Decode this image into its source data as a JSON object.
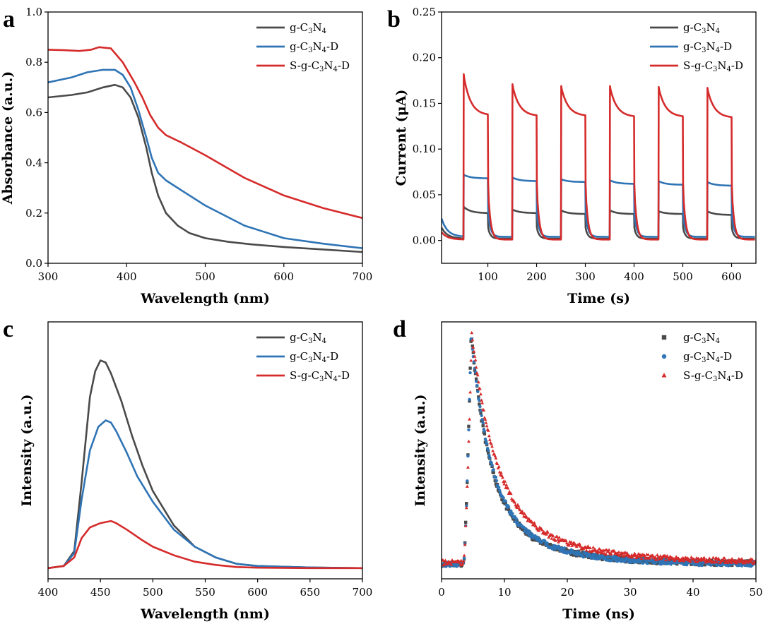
{
  "colors": {
    "g-C3N4": "#4a4a4a",
    "g-C3N4-D": "#2f74b5",
    "S-g-C3N4-D": "#d62b2b"
  },
  "chart_data": [
    {
      "id": "a",
      "panel_letter": "a",
      "type": "line",
      "xlabel": "Wavelength (nm)",
      "ylabel": "Absorbance (a.u.)",
      "xlim": [
        300,
        700
      ],
      "ylim": [
        0,
        1.0
      ],
      "xticks": [
        300,
        400,
        500,
        600,
        700
      ],
      "yticks": [
        0.0,
        0.2,
        0.4,
        0.6,
        0.8,
        1.0
      ],
      "xtick_labels": [
        "300",
        "400",
        "500",
        "600",
        "700"
      ],
      "ytick_labels": [
        "0.0",
        "0.2",
        "0.4",
        "0.6",
        "0.8",
        "1.0"
      ],
      "legend_position": "top-right",
      "series": [
        {
          "key": "g-C3N4",
          "legend": [
            "g-C",
            "3",
            "N",
            "4",
            ""
          ],
          "x": [
            300,
            330,
            350,
            370,
            385,
            395,
            405,
            415,
            425,
            432,
            440,
            450,
            465,
            480,
            500,
            530,
            560,
            600,
            650,
            700
          ],
          "y": [
            0.66,
            0.67,
            0.68,
            0.7,
            0.71,
            0.7,
            0.66,
            0.58,
            0.46,
            0.36,
            0.27,
            0.2,
            0.15,
            0.12,
            0.1,
            0.085,
            0.075,
            0.065,
            0.055,
            0.045
          ]
        },
        {
          "key": "g-C3N4-D",
          "legend": [
            "g-C",
            "3",
            "N",
            "4",
            "-D"
          ],
          "x": [
            300,
            330,
            350,
            370,
            385,
            395,
            405,
            415,
            425,
            432,
            440,
            450,
            470,
            500,
            550,
            600,
            650,
            700
          ],
          "y": [
            0.72,
            0.74,
            0.76,
            0.77,
            0.77,
            0.75,
            0.7,
            0.61,
            0.5,
            0.42,
            0.36,
            0.33,
            0.29,
            0.23,
            0.15,
            0.1,
            0.078,
            0.06
          ]
        },
        {
          "key": "S-g-C3N4-D",
          "legend": [
            "S-g-C",
            "3",
            "N",
            "4",
            "-D"
          ],
          "x": [
            300,
            320,
            340,
            355,
            365,
            380,
            395,
            410,
            420,
            430,
            440,
            450,
            470,
            500,
            550,
            600,
            650,
            700
          ],
          "y": [
            0.85,
            0.848,
            0.845,
            0.85,
            0.86,
            0.855,
            0.8,
            0.72,
            0.66,
            0.59,
            0.54,
            0.51,
            0.48,
            0.43,
            0.34,
            0.27,
            0.22,
            0.18
          ]
        }
      ]
    },
    {
      "id": "b",
      "panel_letter": "b",
      "type": "line",
      "xlabel": "Time (s)",
      "ylabel": "Current (μA)",
      "xlim": [
        5,
        650
      ],
      "ylim": [
        -0.025,
        0.25
      ],
      "xticks": [
        100,
        200,
        300,
        400,
        500,
        600
      ],
      "yticks": [
        0.0,
        0.05,
        0.1,
        0.15,
        0.2,
        0.25
      ],
      "xtick_labels": [
        "100",
        "200",
        "300",
        "400",
        "500",
        "600"
      ],
      "ytick_labels": [
        "0.00",
        "0.05",
        "0.10",
        "0.15",
        "0.20",
        "0.25"
      ],
      "legend_position": "top-right",
      "on_intervals": [
        [
          50,
          100
        ],
        [
          150,
          200
        ],
        [
          250,
          300
        ],
        [
          350,
          400
        ],
        [
          450,
          500
        ],
        [
          550,
          600
        ]
      ],
      "series": [
        {
          "key": "g-C3N4",
          "legend": [
            "g-C",
            "3",
            "N",
            "4",
            ""
          ],
          "peak": [
            0.037,
            0.034,
            0.033,
            0.033,
            0.032,
            0.032
          ],
          "end": [
            0.03,
            0.03,
            0.029,
            0.029,
            0.029,
            0.028
          ],
          "dark": 0.002
        },
        {
          "key": "g-C3N4-D",
          "legend": [
            "g-C",
            "3",
            "N",
            "4",
            "-D"
          ],
          "peak": [
            0.072,
            0.069,
            0.067,
            0.066,
            0.065,
            0.064
          ],
          "end": [
            0.068,
            0.065,
            0.064,
            0.062,
            0.061,
            0.06
          ],
          "dark": 0.004
        },
        {
          "key": "S-g-C3N4-D",
          "legend": [
            "S-g-C",
            "3",
            "N",
            "4",
            "-D"
          ],
          "peak": [
            0.182,
            0.171,
            0.169,
            0.169,
            0.168,
            0.167
          ],
          "end": [
            0.138,
            0.137,
            0.137,
            0.136,
            0.136,
            0.135
          ],
          "dark": 0.001
        }
      ]
    },
    {
      "id": "c",
      "panel_letter": "c",
      "type": "line",
      "xlabel": "Wavelength (nm)",
      "ylabel": "Intensity (a.u.)",
      "xlim": [
        400,
        700
      ],
      "ylim": [
        -0.05,
        1.15
      ],
      "xticks": [
        400,
        450,
        500,
        550,
        600,
        650,
        700
      ],
      "yticks": [],
      "xtick_labels": [
        "400",
        "450",
        "500",
        "550",
        "600",
        "650",
        "700"
      ],
      "ytick_labels": [],
      "legend_position": "top-right",
      "series": [
        {
          "key": "g-C3N4",
          "legend": [
            "g-C",
            "3",
            "N",
            "4",
            ""
          ],
          "x": [
            400,
            415,
            425,
            432,
            440,
            445,
            450,
            455,
            460,
            470,
            480,
            490,
            500,
            520,
            540,
            560,
            580,
            600,
            650,
            700
          ],
          "y": [
            0,
            0.01,
            0.08,
            0.4,
            0.8,
            0.92,
            0.97,
            0.96,
            0.91,
            0.78,
            0.62,
            0.48,
            0.36,
            0.2,
            0.1,
            0.05,
            0.02,
            0.01,
            0.003,
            0
          ]
        },
        {
          "key": "g-C3N4-D",
          "legend": [
            "g-C",
            "3",
            "N",
            "4",
            "-D"
          ],
          "x": [
            400,
            415,
            425,
            432,
            440,
            448,
            455,
            460,
            465,
            475,
            485,
            500,
            520,
            540,
            560,
            580,
            600,
            650,
            700
          ],
          "y": [
            0,
            0.01,
            0.07,
            0.32,
            0.55,
            0.66,
            0.69,
            0.68,
            0.64,
            0.54,
            0.43,
            0.31,
            0.18,
            0.1,
            0.05,
            0.02,
            0.01,
            0.003,
            0
          ]
        },
        {
          "key": "S-g-C3N4-D",
          "legend": [
            "S-g-C",
            "3",
            "N",
            "4",
            "-D"
          ],
          "x": [
            400,
            415,
            425,
            432,
            440,
            450,
            460,
            465,
            475,
            490,
            500,
            520,
            540,
            560,
            580,
            600,
            650,
            700
          ],
          "y": [
            0,
            0.01,
            0.05,
            0.14,
            0.19,
            0.21,
            0.22,
            0.21,
            0.18,
            0.13,
            0.1,
            0.06,
            0.03,
            0.015,
            0.005,
            0.002,
            0,
            0
          ]
        }
      ]
    },
    {
      "id": "d",
      "panel_letter": "d",
      "type": "scatter",
      "xlabel": "Time (ns)",
      "ylabel": "Intensity (a.u.)",
      "xlim": [
        0,
        50
      ],
      "ylim": [
        -0.05,
        1.05
      ],
      "xticks": [
        0,
        10,
        20,
        30,
        40,
        50
      ],
      "yticks": [],
      "xtick_labels": [
        "0",
        "10",
        "20",
        "30",
        "40",
        "50"
      ],
      "ytick_labels": [],
      "legend_position": "top-right",
      "series": [
        {
          "key": "g-C3N4",
          "marker": "square",
          "legend": [
            "g-C",
            "3",
            "N",
            "4",
            ""
          ],
          "rise_start": 3.5,
          "peak_t": 4.7,
          "tau": 2.8,
          "baseline": 0.015
        },
        {
          "key": "g-C3N4-D",
          "marker": "circle",
          "legend": [
            "g-C",
            "3",
            "N",
            "4",
            "-D"
          ],
          "rise_start": 3.5,
          "peak_t": 4.7,
          "tau": 2.9,
          "baseline": 0.012
        },
        {
          "key": "S-g-C3N4-D",
          "marker": "triangle",
          "legend": [
            "S-g-C",
            "3",
            "N",
            "4",
            "-D"
          ],
          "rise_start": 3.5,
          "peak_t": 4.8,
          "tau": 3.6,
          "baseline": 0.02
        }
      ]
    }
  ]
}
